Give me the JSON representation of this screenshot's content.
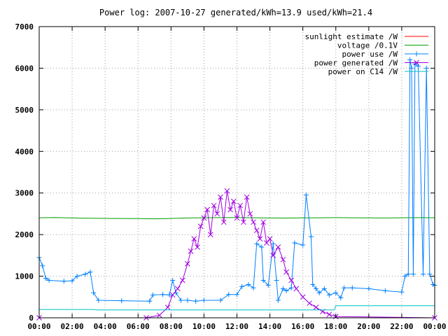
{
  "chart_data": {
    "type": "line",
    "title": "Power log: 2007-10-27 generated/kWh=13.9 used/kWh=21.4",
    "xlabel": "",
    "ylabel": "",
    "xlim": [
      0,
      24
    ],
    "ylim": [
      0,
      7000
    ],
    "grid": true,
    "legend_position": "top-right",
    "x_ticks": [
      {
        "value": 0,
        "label": "00:00"
      },
      {
        "value": 2,
        "label": "02:00"
      },
      {
        "value": 4,
        "label": "04:00"
      },
      {
        "value": 6,
        "label": "06:00"
      },
      {
        "value": 8,
        "label": "08:00"
      },
      {
        "value": 10,
        "label": "10:00"
      },
      {
        "value": 12,
        "label": "12:00"
      },
      {
        "value": 14,
        "label": "14:00"
      },
      {
        "value": 16,
        "label": "16:00"
      },
      {
        "value": 18,
        "label": "18:00"
      },
      {
        "value": 20,
        "label": "20:00"
      },
      {
        "value": 22,
        "label": "22:00"
      },
      {
        "value": 24,
        "label": "00:00"
      }
    ],
    "y_ticks": [
      {
        "value": 0,
        "label": "0"
      },
      {
        "value": 1000,
        "label": "1000"
      },
      {
        "value": 2000,
        "label": "2000"
      },
      {
        "value": 3000,
        "label": "3000"
      },
      {
        "value": 4000,
        "label": "4000"
      },
      {
        "value": 5000,
        "label": "5000"
      },
      {
        "value": 6000,
        "label": "6000"
      },
      {
        "value": 7000,
        "label": "7000"
      }
    ],
    "series": [
      {
        "name": "sunlight estimate /W",
        "color": "#ff0000",
        "marker": "none",
        "x": [
          0,
          24
        ],
        "y": [
          0,
          0
        ]
      },
      {
        "name": "voltage /0.1V",
        "color": "#00a000",
        "marker": "none",
        "x": [
          0,
          1,
          2,
          3,
          4,
          5,
          6,
          7,
          8,
          9,
          10,
          11,
          12,
          13,
          14,
          15,
          16,
          17,
          18,
          19,
          20,
          21,
          22,
          23,
          24
        ],
        "y": [
          2405,
          2410,
          2400,
          2395,
          2390,
          2388,
          2385,
          2380,
          2388,
          2400,
          2405,
          2408,
          2410,
          2405,
          2400,
          2398,
          2402,
          2405,
          2408,
          2405,
          2402,
          2400,
          2405,
          2408,
          2405
        ]
      },
      {
        "name": "power use /W",
        "color": "#0080ff",
        "marker": "plus",
        "x": [
          0,
          0.2,
          0.4,
          0.6,
          1.5,
          2.0,
          2.3,
          2.8,
          3.1,
          3.3,
          3.6,
          5,
          6.7,
          6.9,
          7.5,
          7.9,
          8.1,
          8.3,
          8.6,
          9.0,
          9.5,
          10,
          11,
          11.5,
          12,
          12.3,
          12.7,
          13,
          13.2,
          13.5,
          13.6,
          13.9,
          14.2,
          14.4,
          14.5,
          14.8,
          15.0,
          15.3,
          15.5,
          16.0,
          16.2,
          16.5,
          16.6,
          16.8,
          17.0,
          17.3,
          17.6,
          18.0,
          18.3,
          18.5,
          19,
          20,
          21,
          22,
          22.2,
          22.4,
          22.5,
          22.6,
          22.7,
          22.8,
          23.0,
          23.3,
          23.5,
          23.7,
          23.9,
          24
        ],
        "y": [
          1450,
          1250,
          950,
          900,
          880,
          890,
          1000,
          1050,
          1100,
          600,
          420,
          410,
          400,
          550,
          560,
          550,
          900,
          600,
          420,
          420,
          400,
          420,
          420,
          560,
          560,
          750,
          800,
          720,
          1780,
          1700,
          900,
          780,
          1780,
          900,
          420,
          700,
          650,
          720,
          1800,
          1750,
          2950,
          1950,
          800,
          700,
          600,
          700,
          550,
          600,
          480,
          720,
          720,
          700,
          650,
          620,
          1000,
          1050,
          6200,
          6000,
          1050,
          6100,
          6050,
          1050,
          6000,
          1050,
          800,
          780
        ]
      },
      {
        "name": "power generated /W",
        "color": "#a000e0",
        "marker": "cross",
        "x": [
          0,
          6.5,
          7.3,
          7.8,
          8.1,
          8.4,
          8.7,
          9.0,
          9.2,
          9.4,
          9.6,
          9.8,
          10.0,
          10.2,
          10.4,
          10.6,
          10.8,
          11.0,
          11.2,
          11.4,
          11.6,
          11.8,
          12.0,
          12.2,
          12.4,
          12.6,
          12.8,
          13.0,
          13.2,
          13.4,
          13.6,
          13.8,
          14.0,
          14.2,
          14.5,
          14.8,
          15.0,
          15.3,
          15.6,
          16.0,
          16.4,
          16.8,
          17.2,
          17.6,
          18.0,
          24
        ],
        "y": [
          0,
          0,
          60,
          250,
          550,
          700,
          900,
          1300,
          1600,
          1900,
          1700,
          2200,
          2400,
          2600,
          2000,
          2700,
          2500,
          2900,
          2300,
          3050,
          2600,
          2800,
          2400,
          2700,
          2300,
          2900,
          2500,
          2300,
          2100,
          1900,
          2300,
          1800,
          1900,
          1500,
          1700,
          1400,
          1100,
          900,
          700,
          500,
          350,
          250,
          150,
          80,
          30,
          0
        ]
      },
      {
        "name": "power on C14 /W",
        "color": "#00c0c0",
        "marker": "none",
        "x": [
          0,
          3.3,
          3.5,
          17.9,
          18.0,
          24
        ],
        "y": [
          200,
          200,
          190,
          190,
          290,
          290
        ]
      }
    ]
  }
}
